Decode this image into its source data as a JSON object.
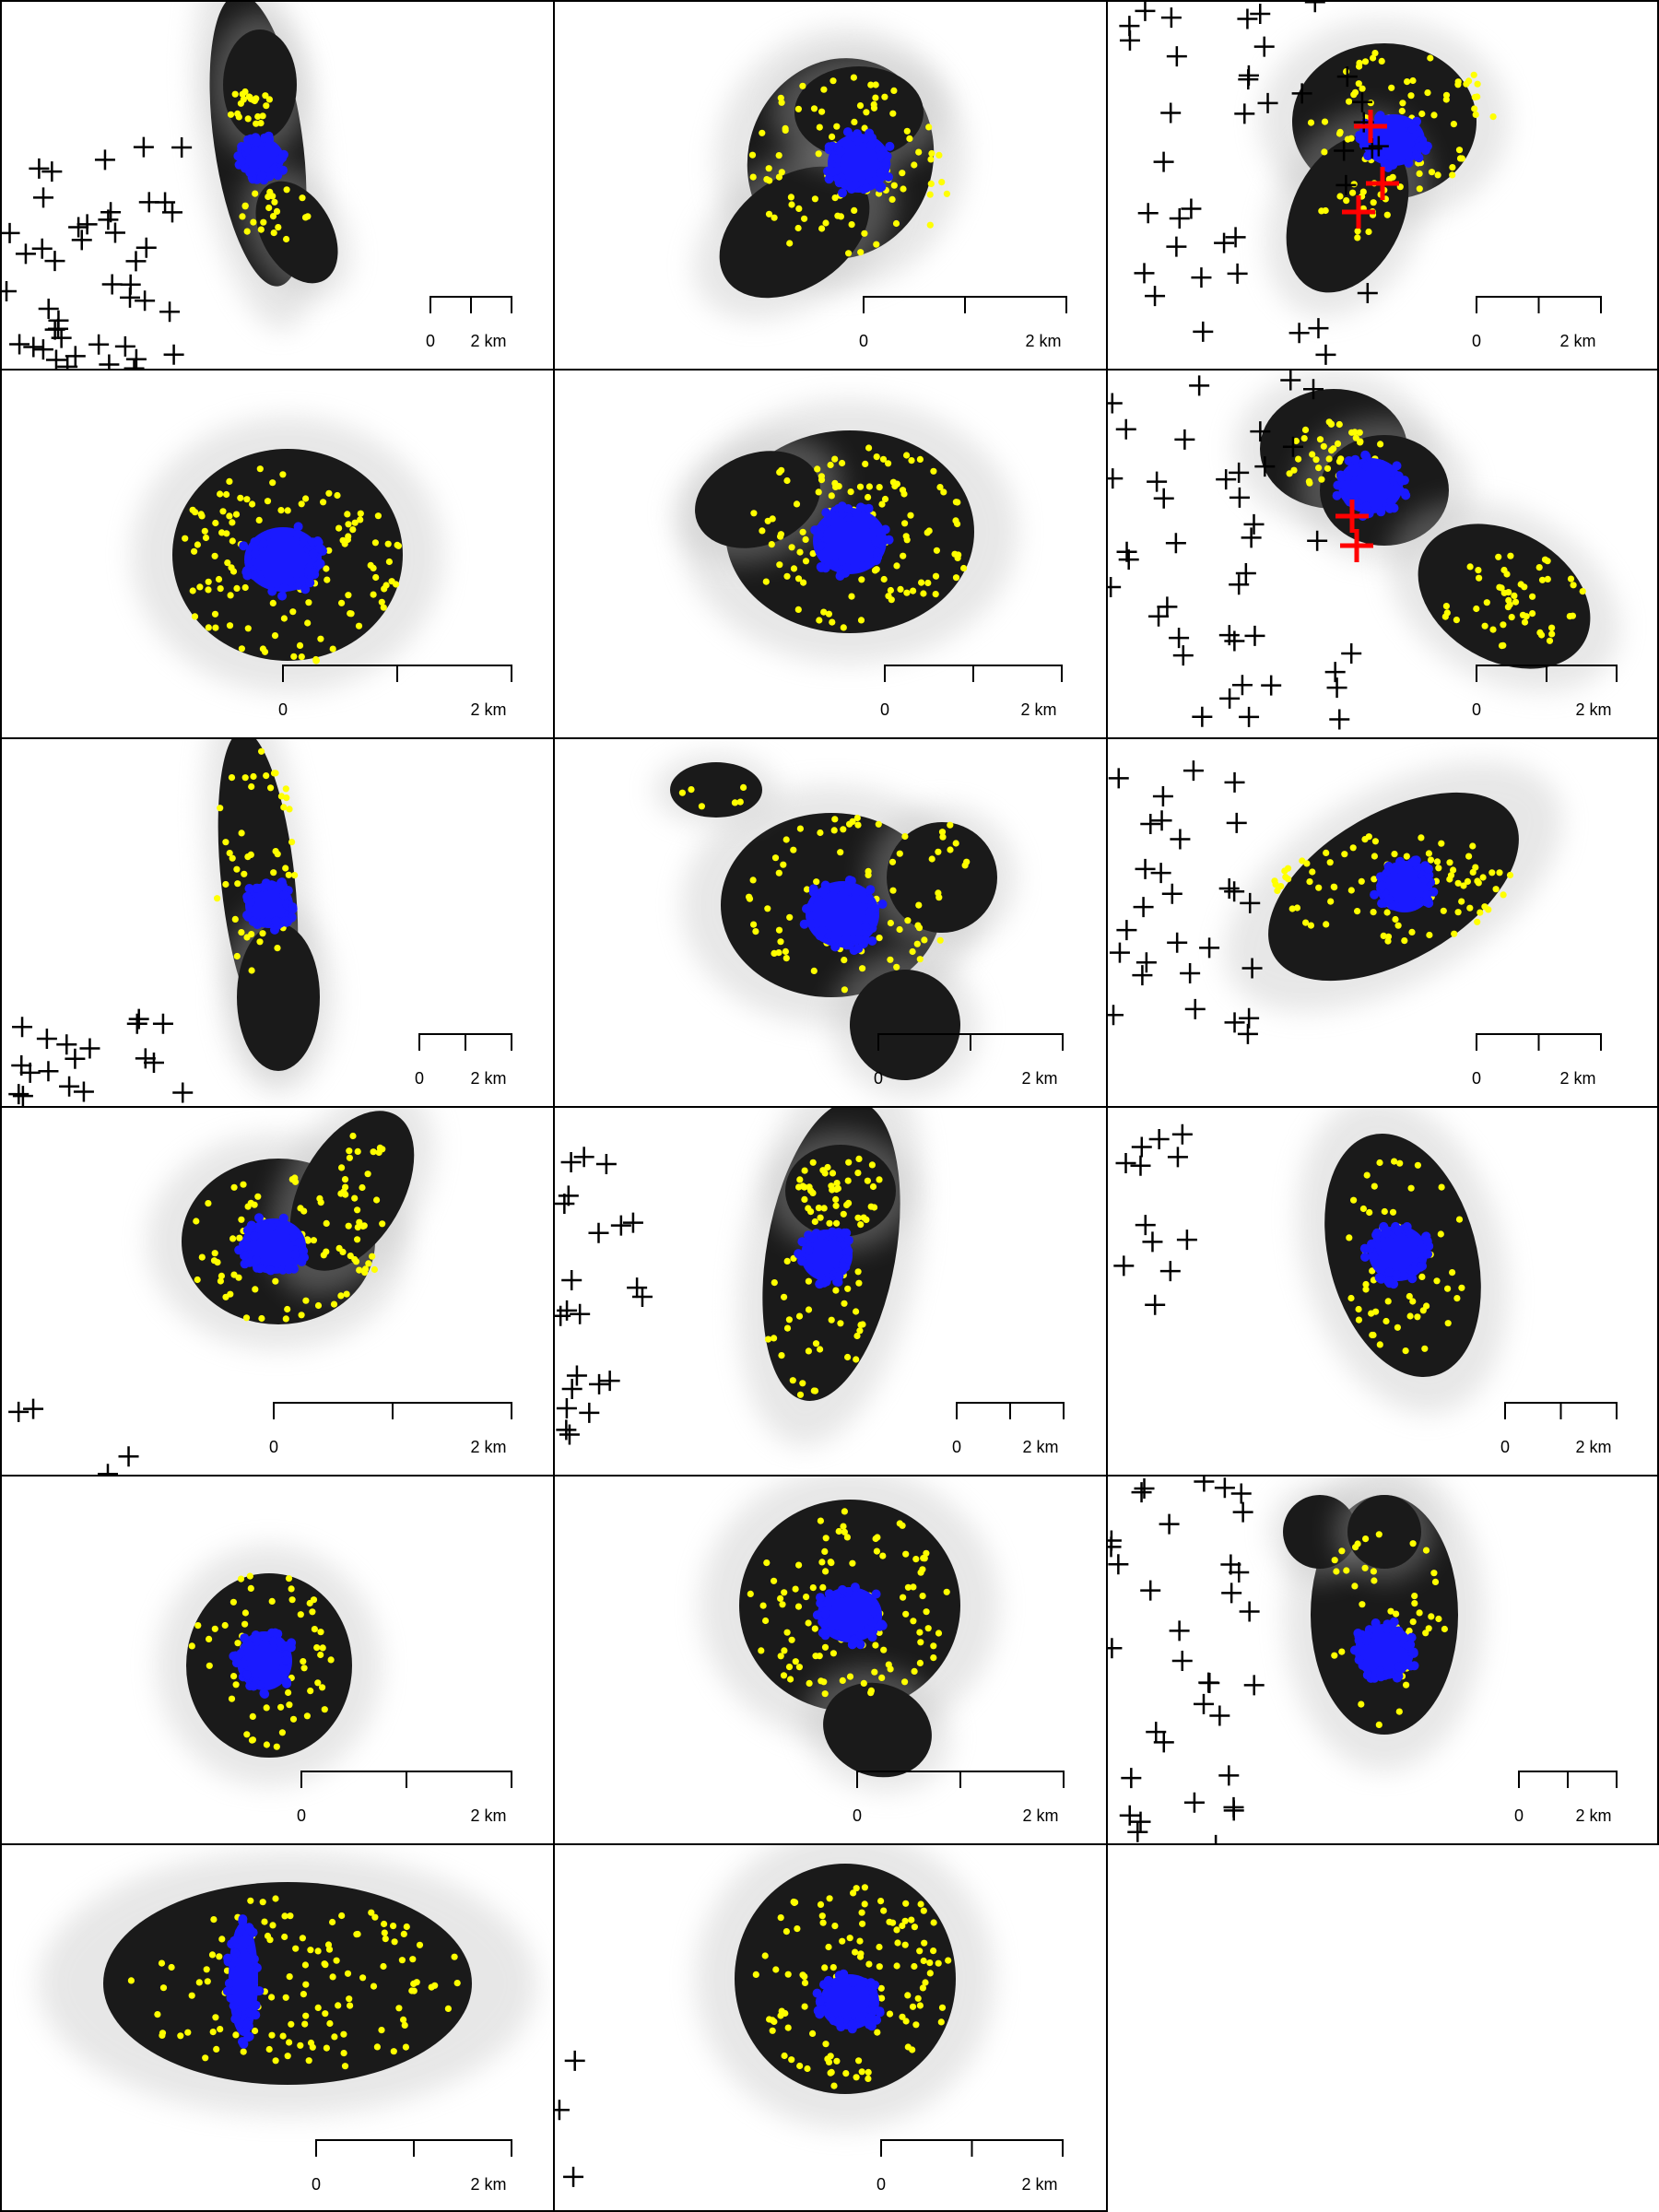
{
  "figure": {
    "panel_count": 17,
    "grid": {
      "rows": 6,
      "cols": 3
    },
    "colors": {
      "background": "#ffffff",
      "frame": "#000000",
      "track_cloud": "#1a1a1a",
      "points": "#ffff00",
      "center": "#1a1aff",
      "marker": "#000000",
      "highlight_marker": "#ff0000"
    },
    "marker_symbol": "+",
    "scale_labels": {
      "start": "0",
      "end": "2 km"
    },
    "panels": [
      {
        "id": "r1c1",
        "scale_ticks": 3,
        "has_markers": true,
        "red_markers": 0
      },
      {
        "id": "r1c2",
        "scale_ticks": 3,
        "has_markers": false,
        "red_markers": 0
      },
      {
        "id": "r1c3",
        "scale_ticks": 3,
        "has_markers": true,
        "red_markers": 3
      },
      {
        "id": "r2c1",
        "scale_ticks": 3,
        "has_markers": false,
        "red_markers": 0
      },
      {
        "id": "r2c2",
        "scale_ticks": 3,
        "has_markers": false,
        "red_markers": 0
      },
      {
        "id": "r2c3",
        "scale_ticks": 3,
        "has_markers": true,
        "red_markers": 2
      },
      {
        "id": "r3c1",
        "scale_ticks": 3,
        "has_markers": true,
        "red_markers": 0
      },
      {
        "id": "r3c2",
        "scale_ticks": 3,
        "has_markers": false,
        "red_markers": 0
      },
      {
        "id": "r3c3",
        "scale_ticks": 3,
        "has_markers": true,
        "red_markers": 0
      },
      {
        "id": "r4c1",
        "scale_ticks": 3,
        "has_markers": true,
        "red_markers": 0
      },
      {
        "id": "r4c2",
        "scale_ticks": 3,
        "has_markers": true,
        "red_markers": 0
      },
      {
        "id": "r4c3",
        "scale_ticks": 3,
        "has_markers": true,
        "red_markers": 0
      },
      {
        "id": "r5c1",
        "scale_ticks": 3,
        "has_markers": false,
        "red_markers": 0
      },
      {
        "id": "r5c2",
        "scale_ticks": 3,
        "has_markers": false,
        "red_markers": 0
      },
      {
        "id": "r5c3",
        "scale_ticks": 3,
        "has_markers": true,
        "red_markers": 0
      },
      {
        "id": "r6c1",
        "scale_ticks": 3,
        "has_markers": false,
        "red_markers": 0
      },
      {
        "id": "r6c2",
        "scale_ticks": 3,
        "has_markers": true,
        "red_markers": 0
      }
    ]
  }
}
